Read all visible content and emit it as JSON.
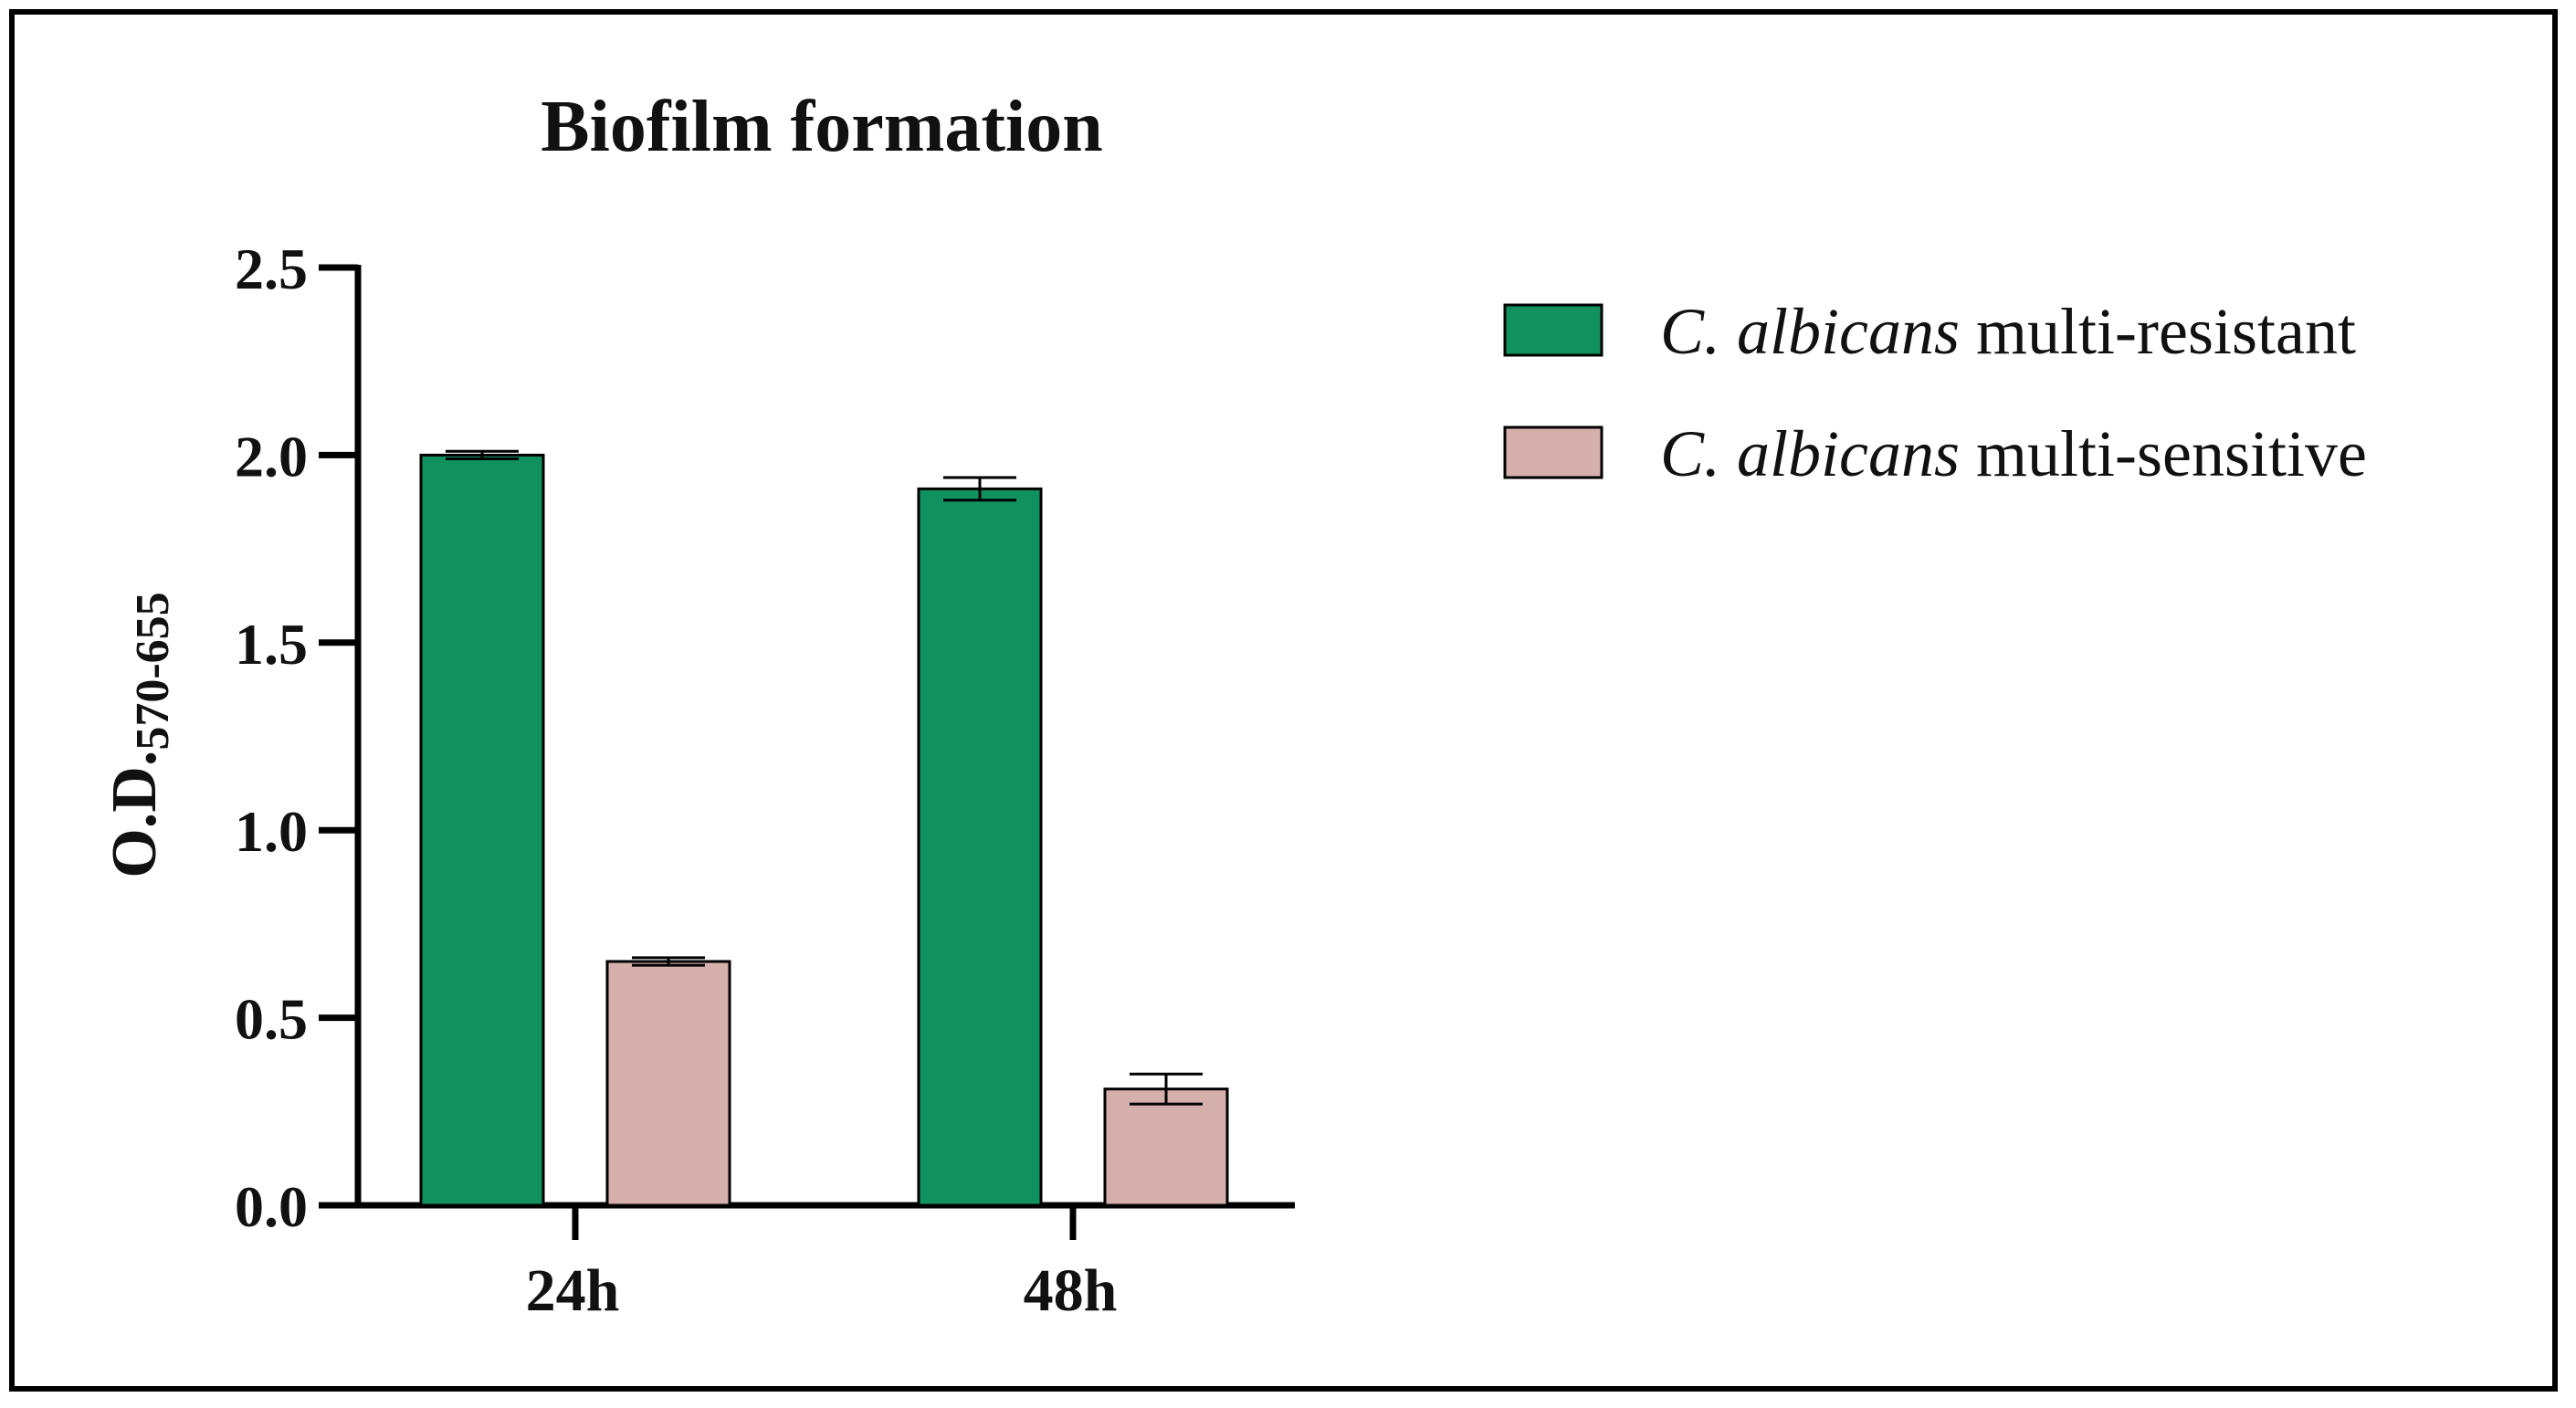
{
  "chart_data": {
    "type": "bar",
    "title": "Biofilm formation",
    "ylabel_main": "O.D.",
    "ylabel_sub": "570-655",
    "xlabel": "",
    "categories": [
      "24h",
      "48h"
    ],
    "ylim": [
      0,
      2.5
    ],
    "yticks": [
      0.0,
      0.5,
      1.0,
      1.5,
      2.0,
      2.5
    ],
    "ytick_labels": [
      "0.0",
      "0.5",
      "1.0",
      "1.5",
      "2.0",
      "2.5"
    ],
    "grid": false,
    "legend_position": "right",
    "series": [
      {
        "name": "C. albicans multi-resistant",
        "name_italic": "C. albicans",
        "name_rest": "multi-resistant",
        "color": "#11915e",
        "values": [
          2.0,
          1.91
        ],
        "errors": [
          0.01,
          0.03
        ]
      },
      {
        "name": "C. albicans multi-sensitive",
        "name_italic": "C. albicans",
        "name_rest": "multi-sensitive",
        "color": "#d5afac",
        "values": [
          0.65,
          0.31
        ],
        "errors": [
          0.01,
          0.04
        ]
      }
    ]
  }
}
